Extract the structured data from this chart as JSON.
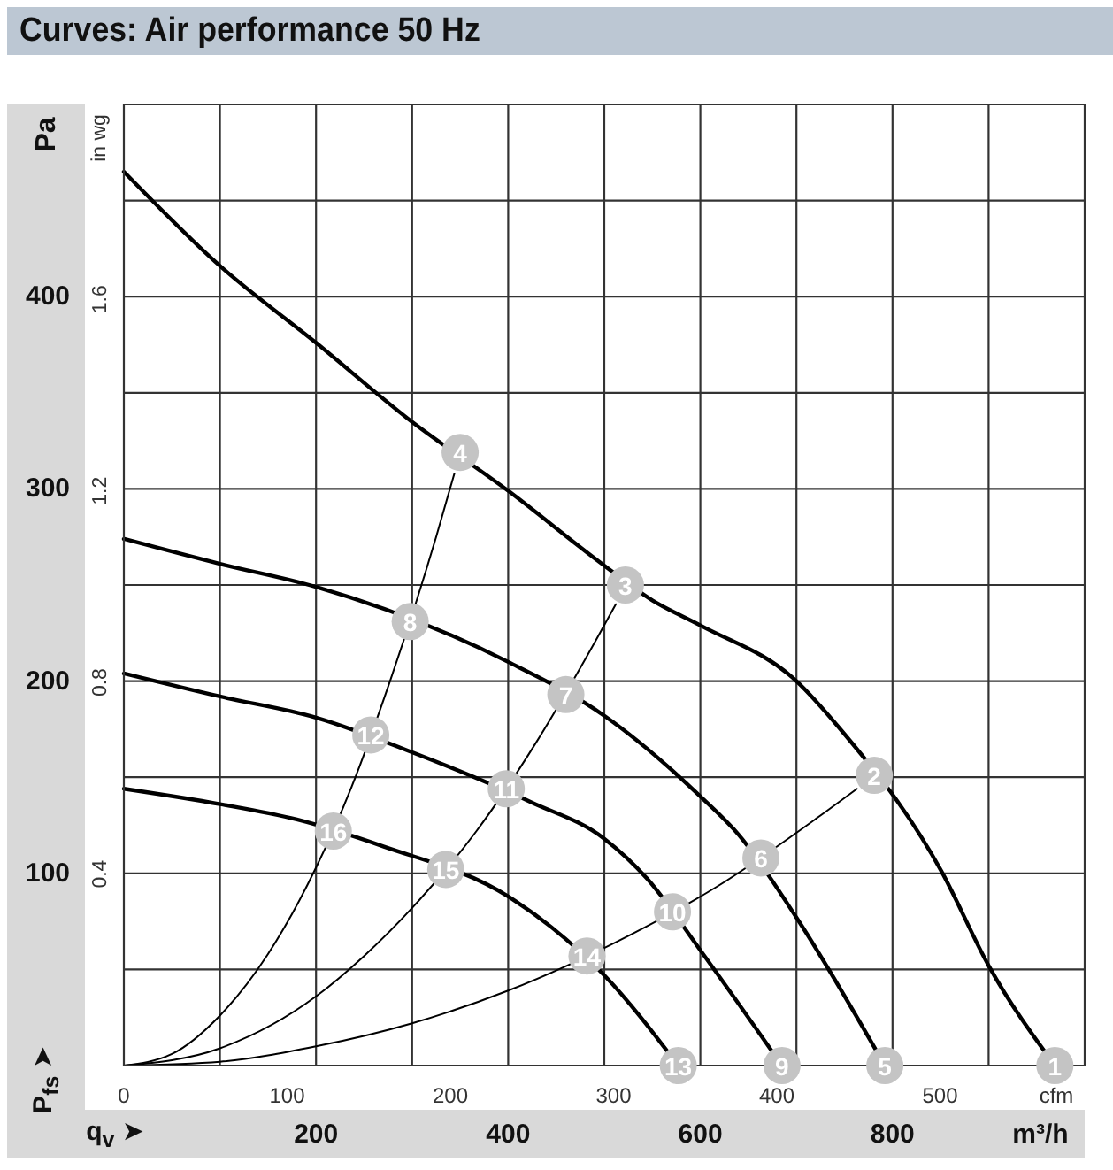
{
  "chart_data": {
    "type": "line",
    "title": "Curves: Air performance 50 Hz",
    "xlabel": "m³/h",
    "x2label": "cfm",
    "ylabel": "Pa",
    "y2label": "in wg",
    "annotations": [
      "q$_{v}$ ➤",
      "P$_{fs}$ ➤",
      {
        "text": "1",
        "x": 969,
        "y": 0
      },
      {
        "text": "2",
        "x": 781,
        "y": 151
      },
      {
        "text": "3",
        "x": 522,
        "y": 250
      },
      {
        "text": "4",
        "x": 350,
        "y": 319
      },
      {
        "text": "5",
        "x": 792,
        "y": 0
      },
      {
        "text": "6",
        "x": 663,
        "y": 108
      },
      {
        "text": "7",
        "x": 460,
        "y": 193
      },
      {
        "text": "8",
        "x": 298,
        "y": 231
      },
      {
        "text": "9",
        "x": 685,
        "y": 0
      },
      {
        "text": "10",
        "x": 571,
        "y": 80
      },
      {
        "text": "11",
        "x": 398,
        "y": 144
      },
      {
        "text": "12",
        "x": 257,
        "y": 172
      },
      {
        "text": "13",
        "x": 577,
        "y": 0
      },
      {
        "text": "14",
        "x": 482,
        "y": 57
      },
      {
        "text": "15",
        "x": 335,
        "y": 102
      },
      {
        "text": "16",
        "x": 218,
        "y": 122
      }
    ],
    "xlim": [
      0,
      1000
    ],
    "xticks": [
      {
        "value": 0,
        "label": null
      },
      {
        "value": 100,
        "label": null
      },
      200,
      {
        "value": 300,
        "label": null
      },
      400,
      {
        "value": 500,
        "label": null
      },
      600,
      {
        "value": 700,
        "label": null
      },
      800,
      {
        "value": 900,
        "label": null
      },
      {
        "value": 1000,
        "label": null
      }
    ],
    "x2lim": [
      0,
      588.6
    ],
    "x2ticks": [
      0,
      100,
      200,
      300,
      400,
      500
    ],
    "ylim": [
      0,
      500
    ],
    "yticks": [
      {
        "value": 0,
        "label": null
      },
      {
        "value": 50,
        "label": null
      },
      100,
      {
        "value": 150,
        "label": null
      },
      200,
      {
        "value": 250,
        "label": null
      },
      300,
      {
        "value": 350,
        "label": null
      },
      400,
      {
        "value": 450,
        "label": null
      },
      {
        "value": 500,
        "label": null
      }
    ],
    "y2lim": [
      0,
      2.007
    ],
    "y2ticks": [
      0.4,
      0.8,
      1.2,
      1.6
    ],
    "grid": true,
    "marker": "none",
    "line_style": "solid",
    "series": [
      {
        "color": "#000000",
        "x": [
          0,
          100,
          200,
          297,
          400,
          495,
          550,
          600,
          700,
          744,
          851,
          900,
          969
        ],
        "values": [
          465,
          416,
          376,
          336,
          299,
          262,
          242,
          229,
          200,
          176,
          101,
          52,
          0
        ]
      },
      {
        "color": "#000000",
        "x": [
          0,
          100,
          200,
          400,
          500,
          600,
          640,
          700,
          792
        ],
        "values": [
          274,
          261,
          249,
          210,
          182,
          140,
          120,
          77,
          0
        ]
      },
      {
        "color": "#000000",
        "x": [
          0,
          100,
          200,
          300,
          424,
          500,
          545,
          600,
          685
        ],
        "values": [
          204,
          192,
          181,
          163,
          137,
          118,
          97,
          60,
          0
        ]
      },
      {
        "color": "#000000",
        "x": [
          0,
          100,
          180,
          270,
          400,
          445,
          500,
          577
        ],
        "values": [
          144,
          136,
          128,
          114,
          88,
          72,
          47,
          0
        ]
      },
      {
        "color": "#000000",
        "x": [
          0,
          50,
          100,
          150,
          200,
          237,
          277,
          325,
          344
        ],
        "values": [
          0,
          6,
          26,
          58,
          103,
          145,
          200,
          275,
          308
        ]
      },
      {
        "color": "#000000",
        "x": [
          0,
          100,
          200,
          250,
          300,
          367,
          429,
          491,
          512
        ],
        "values": [
          0,
          9,
          36,
          57,
          82,
          122,
          168,
          221,
          240
        ]
      },
      {
        "color": "#000000",
        "x": [
          0,
          100,
          200,
          300,
          400,
          527,
          617,
          722,
          763
        ],
        "values": [
          0,
          2,
          10,
          22,
          39,
          68,
          93,
          129,
          144
        ]
      },
      {
        "type": "scatter",
        "marker": "circle",
        "color": "#c4c4c4",
        "x": [
          969,
          781,
          522,
          350,
          792,
          663,
          460,
          298,
          685,
          571,
          398,
          257,
          577,
          482,
          335,
          218
        ],
        "values": [
          0,
          151,
          250,
          319,
          0,
          108,
          193,
          231,
          0,
          80,
          144,
          172,
          0,
          57,
          102,
          122
        ]
      }
    ]
  }
}
